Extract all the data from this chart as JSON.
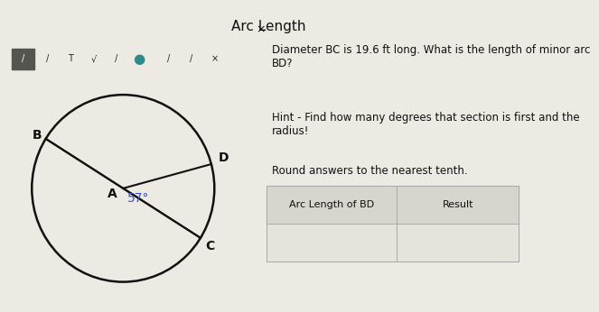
{
  "title": "Arc Length",
  "background_color": "#ede9e3",
  "toolbar_bg": "#888880",
  "question_text": "Diameter BC is 19.6 ft long. What is the length of minor arc\nBD?",
  "hint_text": "Hint - Find how many degrees that section is first and the\nradius!",
  "round_text": "Round answers to the nearest tenth.",
  "table_header1": "Arc Length of BD",
  "table_header2": "Result",
  "angle_label": "57°",
  "center_label": "A",
  "point_B": "B",
  "point_C": "C",
  "point_D": "D",
  "angle_color": "#3355cc",
  "line_color": "#111111",
  "text_color": "#111111",
  "title_fontsize": 11,
  "body_fontsize": 8.5,
  "table_fontsize": 8,
  "toolbar_icon_color": "#222222",
  "table_header_bg": "#d8d4ce",
  "table_row_bg": "#e6e2dc",
  "table_border_color": "#aaaaaa"
}
